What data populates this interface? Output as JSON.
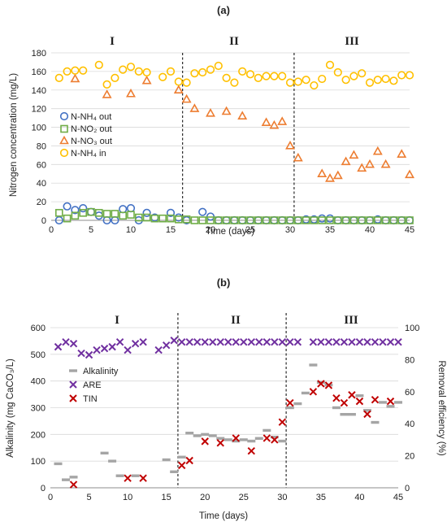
{
  "chart_data": [
    {
      "type": "scatter",
      "panel_label": "(a)",
      "phase_labels": [
        "I",
        "II",
        "III"
      ],
      "phase_boundaries": [
        16.5,
        30.5
      ],
      "xlabel": "Time (days)",
      "ylabel": "Nitrogen concentration (mg/L)",
      "xlim": [
        0,
        45
      ],
      "ylim": [
        0,
        180
      ],
      "xticks": [
        0,
        5,
        10,
        15,
        20,
        25,
        30,
        35,
        40,
        45
      ],
      "yticks": [
        0,
        20,
        40,
        60,
        80,
        100,
        120,
        140,
        160,
        180
      ],
      "legend_position": "center-left",
      "series": [
        {
          "name": "N-NH₄ out",
          "marker": "circle",
          "color": "#4472C4",
          "x": [
            1,
            2,
            3,
            4,
            5,
            6,
            7,
            8,
            9,
            10,
            11,
            12,
            13,
            15,
            16,
            17,
            19,
            20,
            21,
            22,
            23,
            24,
            25,
            26,
            27,
            28,
            29,
            30,
            31,
            32,
            33,
            34,
            35,
            36,
            37,
            38,
            39,
            40,
            41,
            42,
            43,
            44,
            45
          ],
          "y": [
            0,
            15,
            11,
            13,
            9,
            5,
            0,
            0,
            12,
            13,
            0,
            8,
            3,
            8,
            3,
            0,
            9,
            4,
            0,
            0,
            0,
            0,
            0,
            0,
            0,
            0,
            0,
            0,
            0,
            1,
            1,
            2,
            2,
            0,
            0,
            0,
            0,
            0,
            1,
            0,
            0,
            0,
            0
          ]
        },
        {
          "name": "N-NO₂ out",
          "marker": "square",
          "color": "#70AD47",
          "x": [
            1,
            2,
            3,
            4,
            5,
            6,
            7,
            8,
            9,
            10,
            11,
            12,
            13,
            14,
            15,
            16,
            17,
            18,
            19,
            20,
            21,
            22,
            23,
            24,
            25,
            26,
            27,
            28,
            29,
            30,
            31,
            32,
            33,
            34,
            35,
            36,
            37,
            38,
            39,
            40,
            41,
            42,
            43,
            44,
            45
          ],
          "y": [
            8,
            2,
            5,
            8,
            9,
            8,
            7,
            7,
            5,
            6,
            3,
            3,
            2,
            2,
            2,
            1,
            1,
            0,
            0,
            0,
            0,
            0,
            0,
            0,
            0,
            0,
            0,
            0,
            0,
            0,
            0,
            0,
            0,
            0,
            0,
            0,
            0,
            0,
            0,
            0,
            0,
            0,
            0,
            0,
            0
          ]
        },
        {
          "name": "N-NO₃ out",
          "marker": "triangle",
          "color": "#ED7D31",
          "x": [
            3,
            7,
            10,
            12,
            16,
            17,
            18,
            20,
            22,
            24,
            27,
            28,
            29,
            30,
            31,
            34,
            35,
            36,
            37,
            38,
            39,
            40,
            41,
            42,
            44,
            45
          ],
          "y": [
            152,
            135,
            136,
            150,
            140,
            130,
            120,
            115,
            117,
            112,
            105,
            102,
            106,
            80,
            67,
            50,
            45,
            48,
            63,
            70,
            56,
            60,
            74,
            60,
            71,
            49
          ]
        },
        {
          "name": "N-NH₄ in",
          "marker": "circle",
          "color": "#FFC000",
          "x": [
            1,
            2,
            3,
            4,
            6,
            7,
            8,
            9,
            10,
            11,
            12,
            14,
            15,
            16,
            17,
            18,
            19,
            20,
            21,
            22,
            23,
            24,
            25,
            26,
            27,
            28,
            29,
            30,
            31,
            32,
            33,
            34,
            35,
            36,
            37,
            38,
            39,
            40,
            41,
            42,
            43,
            44,
            45
          ],
          "y": [
            153,
            160,
            161,
            161,
            167,
            146,
            153,
            162,
            165,
            160,
            159,
            154,
            160,
            149,
            148,
            158,
            159,
            162,
            166,
            153,
            148,
            160,
            157,
            153,
            155,
            155,
            155,
            148,
            149,
            151,
            145,
            152,
            167,
            159,
            151,
            155,
            158,
            148,
            151,
            152,
            150,
            156,
            156
          ]
        }
      ]
    },
    {
      "type": "scatter",
      "panel_label": "(b)",
      "phase_labels": [
        "I",
        "II",
        "III"
      ],
      "phase_boundaries": [
        16.5,
        30.5
      ],
      "xlabel": "Time (days)",
      "ylabel": "Alkalinity (mg CaCO₃/L)",
      "y2label": "Removal efficiency (%)",
      "xlim": [
        0,
        45
      ],
      "ylim": [
        0,
        600
      ],
      "y2lim": [
        0,
        100
      ],
      "xticks": [
        0,
        5,
        10,
        15,
        20,
        25,
        30,
        35,
        40,
        45
      ],
      "yticks": [
        0,
        100,
        200,
        300,
        400,
        500,
        600
      ],
      "y2ticks": [
        0,
        20,
        40,
        60,
        80,
        100
      ],
      "legend_position": "center-left",
      "series": [
        {
          "name": "Alkalinity",
          "marker": "dash",
          "color": "#A5A5A5",
          "axis": "left",
          "x": [
            1,
            2,
            3,
            7,
            8,
            9,
            11,
            15,
            16,
            17,
            18,
            19,
            20,
            21,
            22,
            23,
            24,
            25,
            26,
            27,
            28,
            29,
            30,
            31,
            32,
            33,
            34,
            35,
            36,
            37,
            38,
            39,
            40,
            41,
            42,
            43,
            44,
            45
          ],
          "y": [
            90,
            30,
            40,
            130,
            100,
            45,
            45,
            105,
            60,
            115,
            205,
            195,
            200,
            195,
            185,
            180,
            175,
            180,
            175,
            185,
            215,
            190,
            175,
            300,
            315,
            355,
            460,
            395,
            385,
            300,
            275,
            275,
            345,
            290,
            245,
            320,
            305,
            320
          ]
        },
        {
          "name": "ARE",
          "marker": "x",
          "color": "#7030A0",
          "axis": "right",
          "x": [
            1,
            2,
            3,
            4,
            5,
            6,
            7,
            8,
            9,
            10,
            11,
            12,
            14,
            15,
            16,
            17,
            18,
            19,
            20,
            21,
            22,
            23,
            24,
            25,
            26,
            27,
            28,
            29,
            30,
            31,
            32,
            34,
            35,
            36,
            37,
            38,
            39,
            40,
            41,
            42,
            43,
            44,
            45
          ],
          "y": [
            88,
            91,
            90,
            84,
            83,
            86,
            87,
            88,
            91,
            86,
            90,
            91,
            86,
            89,
            92,
            91,
            91,
            91,
            91,
            91,
            91,
            91,
            91,
            91,
            91,
            91,
            91,
            91,
            91,
            91,
            91,
            91,
            91,
            91,
            91,
            91,
            91,
            91,
            91,
            91,
            91,
            91,
            91
          ]
        },
        {
          "name": "TIN",
          "marker": "x",
          "color": "#C00000",
          "axis": "right",
          "x": [
            3,
            10,
            12,
            17,
            18,
            20,
            22,
            24,
            26,
            28,
            29,
            30,
            31,
            34,
            35,
            36,
            37,
            38,
            39,
            40,
            41,
            42,
            44
          ],
          "y": [
            2,
            6,
            6,
            14,
            17,
            29,
            28,
            31,
            23,
            31,
            30,
            41,
            53,
            60,
            65,
            64,
            56,
            53,
            58,
            54,
            46,
            55,
            54
          ]
        }
      ]
    }
  ]
}
